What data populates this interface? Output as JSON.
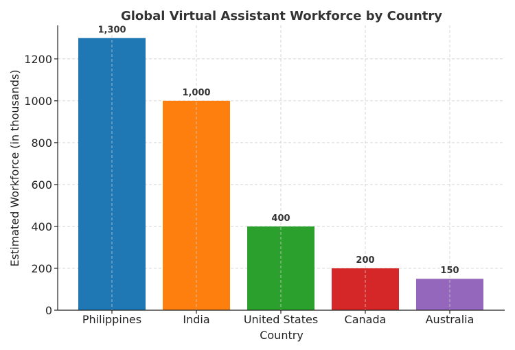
{
  "chart_data": {
    "type": "bar",
    "title": "Global Virtual Assistant Workforce by Country",
    "xlabel": "Country",
    "ylabel": "Estimated Workforce (in thousands)",
    "categories": [
      "Philippines",
      "India",
      "United States",
      "Canada",
      "Australia"
    ],
    "values": [
      1300,
      1000,
      400,
      200,
      150
    ],
    "data_labels": [
      "1,300",
      "1,000",
      "400",
      "200",
      "150"
    ],
    "colors": [
      "#1f77b4",
      "#ff7f0e",
      "#2ca02c",
      "#d62728",
      "#9467bd"
    ],
    "ylim": [
      0,
      1360
    ],
    "yticks": [
      0,
      200,
      400,
      600,
      800,
      1000,
      1200
    ],
    "grid": true,
    "legend": "none"
  }
}
